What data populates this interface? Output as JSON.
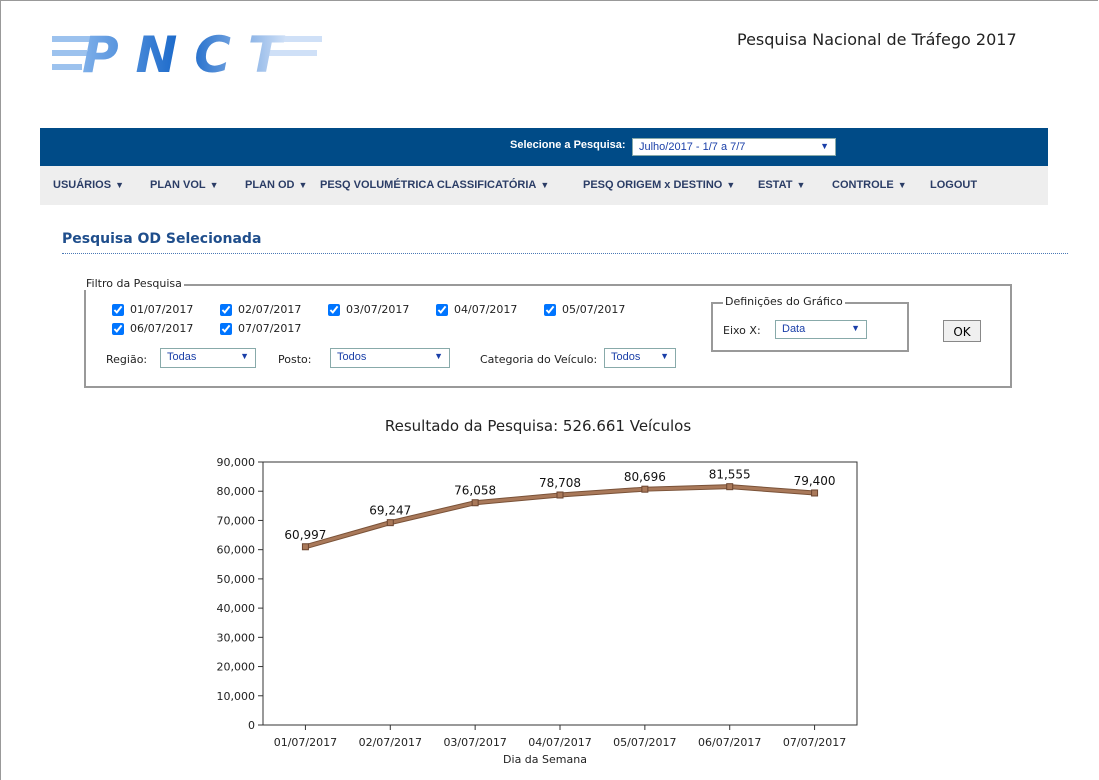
{
  "header": {
    "logo": "PNCT",
    "title": "Pesquisa Nacional de Tráfego 2017"
  },
  "survey_bar": {
    "label": "Selecione a Pesquisa:",
    "selected": "Julho/2017 - 1/7 a 7/7"
  },
  "menu": [
    {
      "label": "USUÁRIOS",
      "dropdown": true
    },
    {
      "label": "PLAN VOL",
      "dropdown": true
    },
    {
      "label": "PLAN OD",
      "dropdown": true
    },
    {
      "label": "PESQ VOLUMÉTRICA CLASSIFICATÓRIA",
      "dropdown": true
    },
    {
      "label": "PESQ ORIGEM x DESTINO",
      "dropdown": true
    },
    {
      "label": "ESTAT",
      "dropdown": true
    },
    {
      "label": "CONTROLE",
      "dropdown": true
    },
    {
      "label": "LOGOUT",
      "dropdown": false
    }
  ],
  "section_title": "Pesquisa OD Selecionada",
  "filter": {
    "legend": "Filtro da Pesquisa",
    "dates": [
      {
        "label": "01/07/2017",
        "checked": true
      },
      {
        "label": "02/07/2017",
        "checked": true
      },
      {
        "label": "03/07/2017",
        "checked": true
      },
      {
        "label": "04/07/2017",
        "checked": true
      },
      {
        "label": "05/07/2017",
        "checked": true
      },
      {
        "label": "06/07/2017",
        "checked": true
      },
      {
        "label": "07/07/2017",
        "checked": true
      }
    ],
    "fields": [
      {
        "label": "Região:",
        "value": "Todas"
      },
      {
        "label": "Posto:",
        "value": "Todos"
      },
      {
        "label": "Categoria do Veículo:",
        "value": "Todos"
      }
    ]
  },
  "chart_settings": {
    "legend": "Definições do Gráfico",
    "axis_label": "Eixo X:",
    "axis_value": "Data",
    "button": "OK"
  },
  "chart_data": {
    "type": "line",
    "title": "Resultado da Pesquisa: 526.661 Veículos",
    "xlabel": "Dia da Semana",
    "categories": [
      "01/07/2017",
      "02/07/2017",
      "03/07/2017",
      "04/07/2017",
      "05/07/2017",
      "06/07/2017",
      "07/07/2017"
    ],
    "values": [
      60997,
      69247,
      76058,
      78708,
      80696,
      81555,
      79400
    ],
    "value_labels": [
      "60,997",
      "69,247",
      "76,058",
      "78,708",
      "80,696",
      "81,555",
      "79,400"
    ],
    "color": "#a9795a",
    "ylim": [
      0,
      90000
    ],
    "yticks": [
      0,
      {
        "value": 10000,
        "label": "10,000"
      },
      {
        "value": 20000,
        "label": "20,000"
      },
      {
        "value": 30000,
        "label": "30,000"
      },
      {
        "value": 40000,
        "label": "40,000"
      },
      {
        "value": 50000,
        "label": "50,000"
      },
      {
        "value": 60000,
        "label": "60,000"
      },
      {
        "value": 70000,
        "label": "70,000"
      },
      {
        "value": 80000,
        "label": "80,000"
      },
      {
        "value": 90000,
        "label": "90,000"
      }
    ]
  }
}
